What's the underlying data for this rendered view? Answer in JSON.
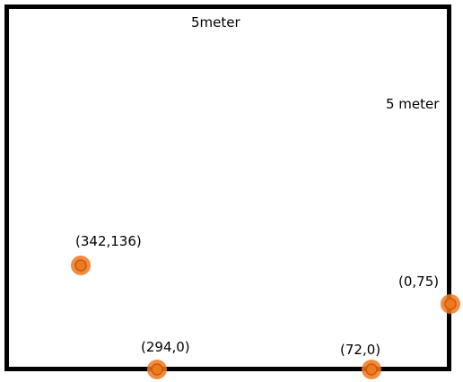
{
  "room": {
    "width_label": "5meter",
    "height_label": "5 meter",
    "border_color": "#000000"
  },
  "marker_color": "#f0781e",
  "points": [
    {
      "label": "(342,136)"
    },
    {
      "label": "(0,75)"
    },
    {
      "label": "(294,0)"
    },
    {
      "label": "(72,0)"
    }
  ]
}
